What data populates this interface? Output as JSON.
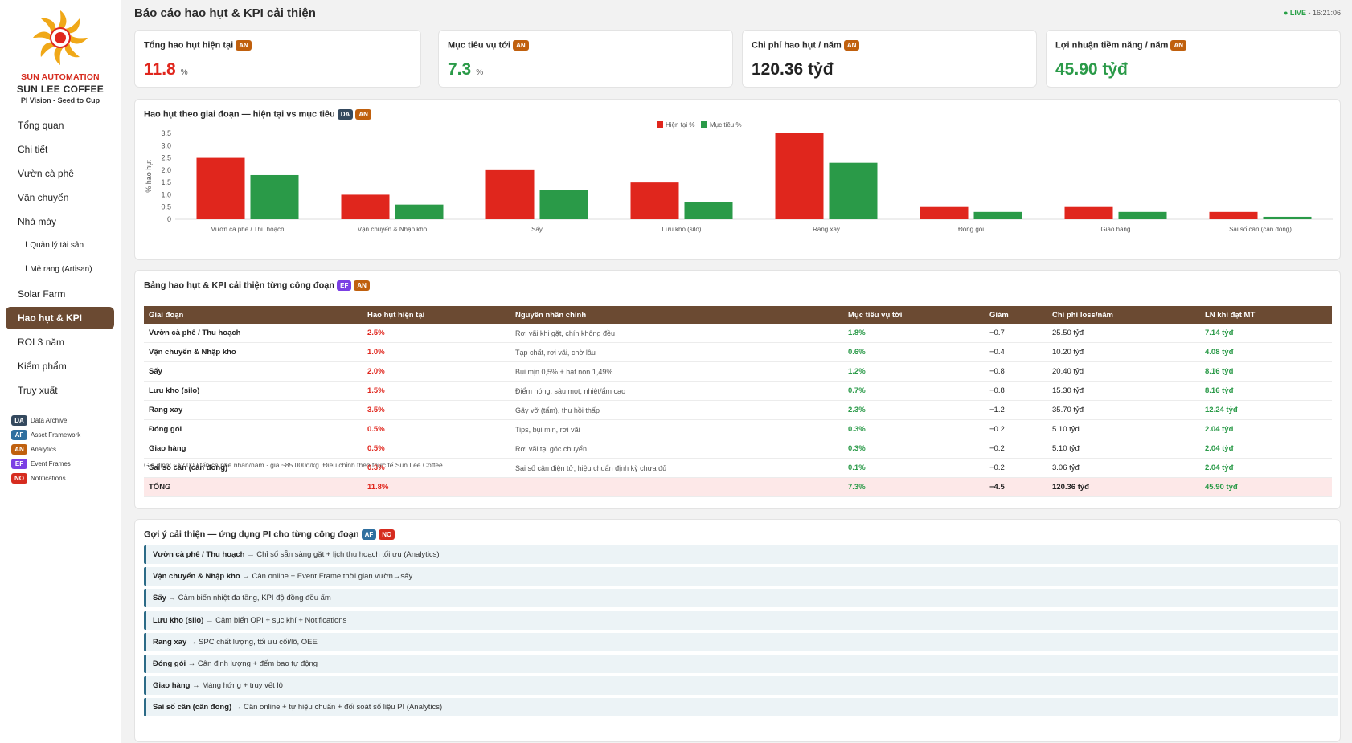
{
  "sidebar": {
    "brand_line1": "SUN AUTOMATION",
    "brand_line2": "SUN LEE COFFEE",
    "brand_line3": "PI Vision - Seed to Cup",
    "items": [
      {
        "label": "Tổng quan"
      },
      {
        "label": "Chi tiết"
      },
      {
        "label": "Vườn cà phê"
      },
      {
        "label": "Vận chuyển"
      },
      {
        "label": "Nhà máy"
      },
      {
        "label": "Ꙇ Quản lý tài sản"
      },
      {
        "label": "Ꙇ Mẻ rang (Artisan)"
      },
      {
        "label": "Solar Farm"
      },
      {
        "label": "Hao hụt & KPI"
      },
      {
        "label": "ROI 3 năm"
      },
      {
        "label": "Kiểm phẩm"
      },
      {
        "label": "Truy xuất"
      }
    ],
    "legend": [
      {
        "code": "DA",
        "label": "Data Archive"
      },
      {
        "code": "AF",
        "label": "Asset Framework"
      },
      {
        "code": "AN",
        "label": "Analytics"
      },
      {
        "code": "EF",
        "label": "Event Frames"
      },
      {
        "code": "NO",
        "label": "Notifications"
      }
    ]
  },
  "header": {
    "title": "Báo cáo hao hụt & KPI cải thiện",
    "live_label": "● LIVE",
    "time": "- 16:21:06"
  },
  "kpis": [
    {
      "label": "Tổng hao hụt hiện tại",
      "badge": "AN",
      "value": "11.8",
      "unit": "%"
    },
    {
      "label": "Mục tiêu vụ tới",
      "badge": "AN",
      "value": "7.3",
      "unit": "%"
    },
    {
      "label": "Chi phí hao hụt / năm",
      "badge": "AN",
      "value": "120.36 tỷđ",
      "unit": ""
    },
    {
      "label": "Lợi nhuận tiềm năng / năm",
      "badge": "AN",
      "value": "45.90 tỷđ",
      "unit": ""
    }
  ],
  "chart_section": {
    "title": "Hao hụt theo giai đoạn — hiện tại vs mục tiêu",
    "badges": [
      "DA",
      "AN"
    ]
  },
  "chart_data": {
    "type": "bar",
    "categories": [
      "Vườn cà phê / Thu hoạch",
      "Vận chuyển & Nhập kho",
      "Sấy",
      "Lưu kho (silo)",
      "Rang xay",
      "Đóng gói",
      "Giao hàng",
      "Sai số cân (cân đong)"
    ],
    "series": [
      {
        "name": "Hiện tại %",
        "values": [
          2.5,
          1.0,
          2.0,
          1.5,
          3.5,
          0.5,
          0.5,
          0.3
        ],
        "color": "#e0261d"
      },
      {
        "name": "Mục tiêu %",
        "values": [
          1.8,
          0.6,
          1.2,
          0.7,
          2.3,
          0.3,
          0.3,
          0.1
        ],
        "color": "#2a9a48"
      }
    ],
    "ylabel": "% hao hụt",
    "ylim": [
      0,
      3.5
    ],
    "yticks": [
      "0",
      "0.5",
      "1.0",
      "1.5",
      "2.0",
      "2.5",
      "3.0",
      "3.5"
    ],
    "legend_position": "top-center"
  },
  "table_section": {
    "title": "Bảng hao hụt & KPI cải thiện từng công đoạn",
    "badges": [
      "EF",
      "AN"
    ],
    "columns": [
      "Giai đoạn",
      "Hao hụt hiện tại",
      "Nguyên nhân chính",
      "Mục tiêu vụ tới",
      "Giảm",
      "Chi phí loss/năm",
      "LN khi đạt MT"
    ],
    "rows": [
      {
        "stage": "Vườn cà phê / Thu hoạch",
        "current": "2.5%",
        "cause": "Rơi vãi khi gặt, chín không đều",
        "target": "1.8%",
        "reduce": "−0.7",
        "cost": "25.50 tỷđ",
        "profit": "7.14 tỷđ"
      },
      {
        "stage": "Vận chuyển & Nhập kho",
        "current": "1.0%",
        "cause": "Tạp chất, rơi vãi, chờ lâu",
        "target": "0.6%",
        "reduce": "−0.4",
        "cost": "10.20 tỷđ",
        "profit": "4.08 tỷđ"
      },
      {
        "stage": "Sấy",
        "current": "2.0%",
        "cause": "Bụi mịn 0,5% + hạt non 1,49%",
        "target": "1.2%",
        "reduce": "−0.8",
        "cost": "20.40 tỷđ",
        "profit": "8.16 tỷđ"
      },
      {
        "stage": "Lưu kho (silo)",
        "current": "1.5%",
        "cause": "Điểm nóng, sâu mọt, nhiệt/ẩm cao",
        "target": "0.7%",
        "reduce": "−0.8",
        "cost": "15.30 tỷđ",
        "profit": "8.16 tỷđ"
      },
      {
        "stage": "Rang xay",
        "current": "3.5%",
        "cause": "Gãy vỡ (tấm), thu hồi thấp",
        "target": "2.3%",
        "reduce": "−1.2",
        "cost": "35.70 tỷđ",
        "profit": "12.24 tỷđ"
      },
      {
        "stage": "Đóng gói",
        "current": "0.5%",
        "cause": "Tips, bụi mịn, rơi vãi",
        "target": "0.3%",
        "reduce": "−0.2",
        "cost": "5.10 tỷđ",
        "profit": "2.04 tỷđ"
      },
      {
        "stage": "Giao hàng",
        "current": "0.5%",
        "cause": "Rơi vãi tại góc chuyển",
        "target": "0.3%",
        "reduce": "−0.2",
        "cost": "5.10 tỷđ",
        "profit": "2.04 tỷđ"
      },
      {
        "stage": "Sai số cân (cân đong)",
        "current": "0.3%",
        "cause": "Sai số cân điện tử; hiệu chuẩn định kỳ chưa đủ",
        "target": "0.1%",
        "reduce": "−0.2",
        "cost": "3.06 tỷđ",
        "profit": "2.04 tỷđ"
      }
    ],
    "total": {
      "stage": "TỔNG",
      "current": "11.8%",
      "cause": "",
      "target": "7.3%",
      "reduce": "−4.5",
      "cost": "120.36 tỷđ",
      "profit": "45.90 tỷđ"
    },
    "note": "Giả định: ~12.000 tấn cà phê nhân/năm · giá ~85.000đ/kg. Điều chỉnh theo thực tế Sun Lee Coffee."
  },
  "suggestions_section": {
    "title": "Gợi ý cải thiện — ứng dụng PI cho từng công đoạn",
    "badges": [
      "AF",
      "NO"
    ],
    "items": [
      {
        "stage": "Vườn cà phê / Thu hoạch",
        "text": "→ Chỉ số sẵn sàng gặt + lịch thu hoạch tối ưu (Analytics)"
      },
      {
        "stage": "Vận chuyển & Nhập kho",
        "text": "→ Cân online + Event Frame thời gian vườn→sấy"
      },
      {
        "stage": "Sấy",
        "text": "→ Cảm biến nhiệt đa tầng, KPI độ đồng đều ẩm"
      },
      {
        "stage": "Lưu kho (silo)",
        "text": "→ Cảm biến OPI + sục khí + Notifications"
      },
      {
        "stage": "Rang xay",
        "text": "→ SPC chất lượng, tối ưu cối/lô, OEE"
      },
      {
        "stage": "Đóng gói",
        "text": "→ Cân định lượng + đếm bao tự động"
      },
      {
        "stage": "Giao hàng",
        "text": "→ Máng hứng + truy vết lô"
      },
      {
        "stage": "Sai số cân (cân đong)",
        "text": "→ Cân online + tự hiệu chuẩn + đối soát số liệu PI (Analytics)"
      }
    ]
  },
  "colors": {
    "accent_brown": "#6b4a32",
    "red": "#e0261d",
    "green": "#2a9a48"
  }
}
